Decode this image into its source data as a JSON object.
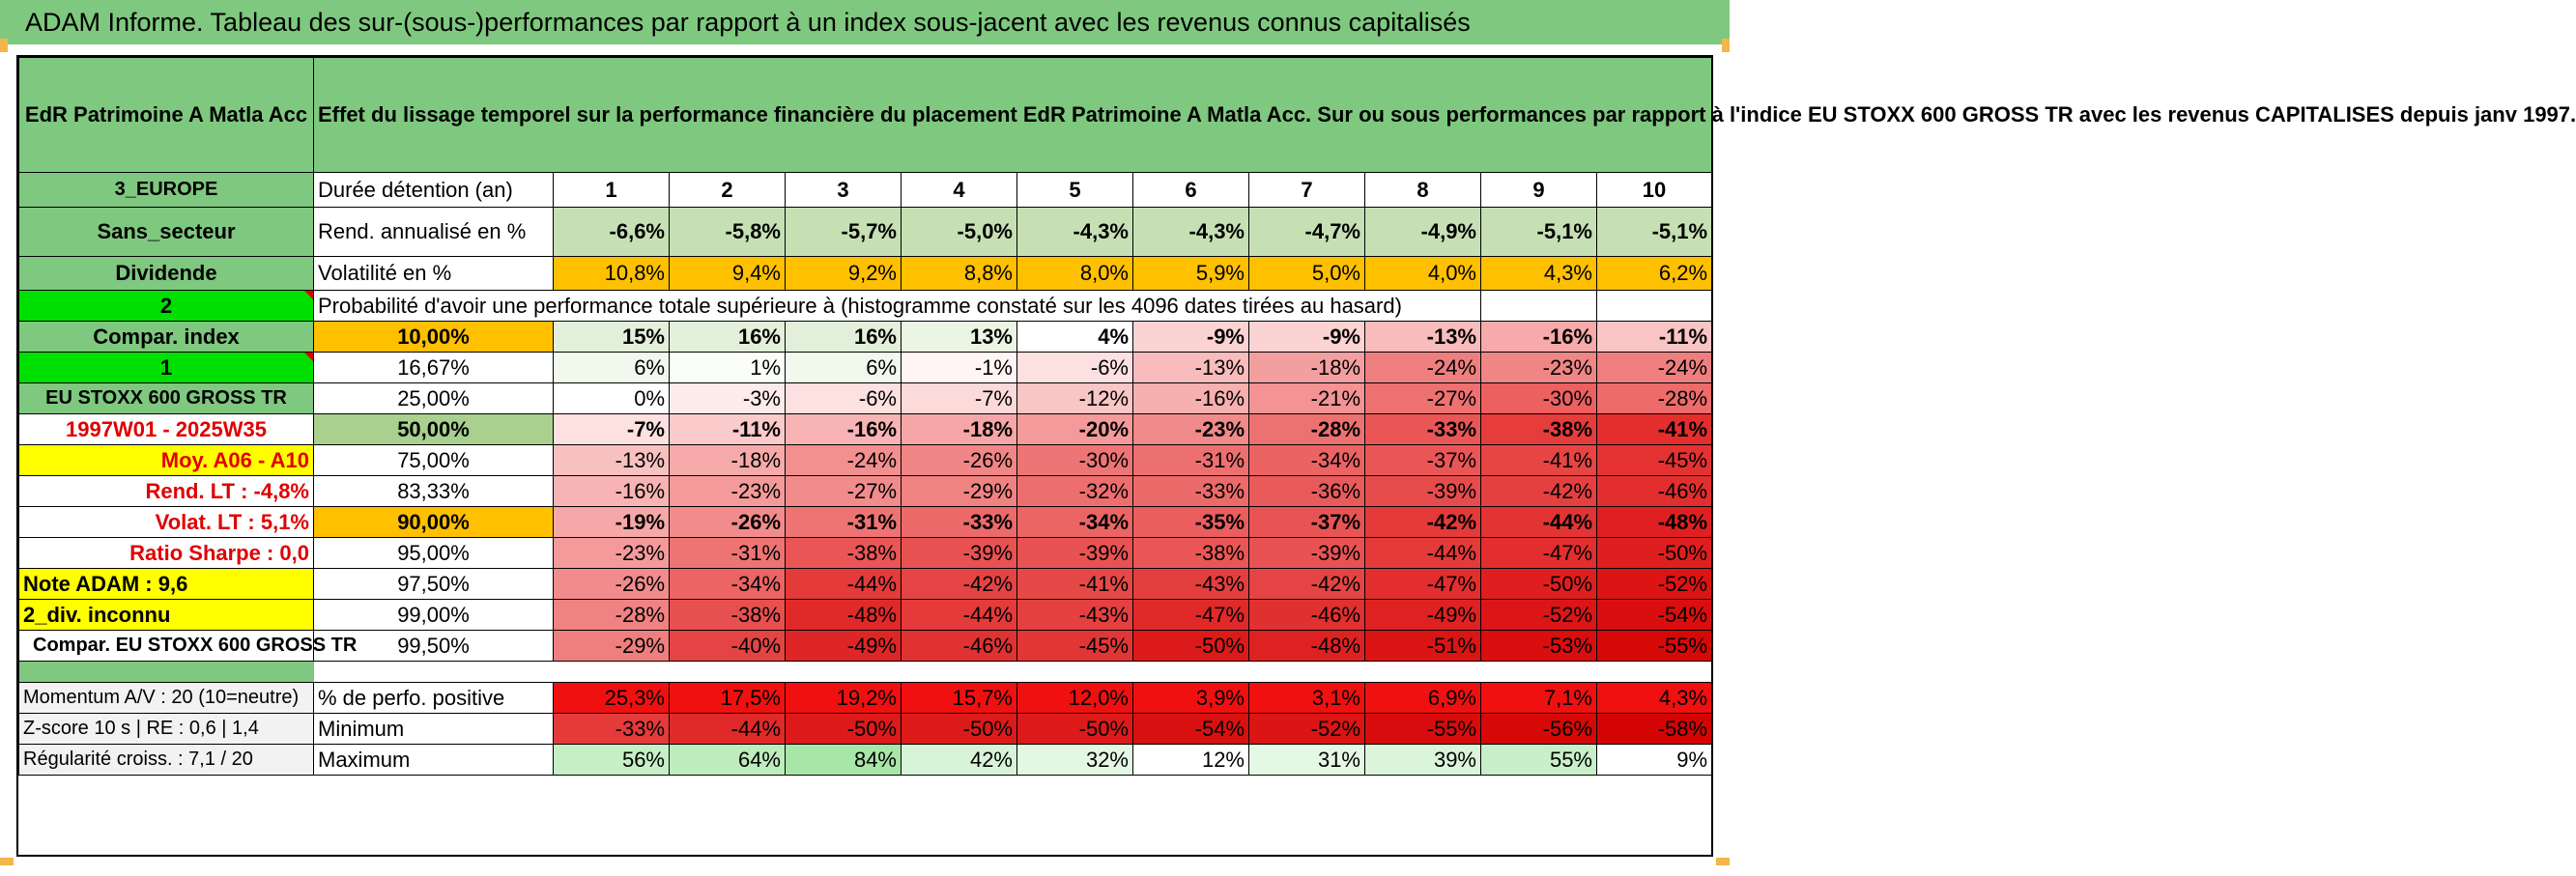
{
  "title": "ADAM Informe. Tableau des sur-(sous-)performances par rapport à un index sous-jacent avec les revenus connus capitalisés",
  "fund_name": "EdR Patrimoine A Matla Acc",
  "description": "Effet du lissage temporel sur la performance financière du placement EdR Patrimoine A Matla Acc. Sur ou sous performances par rapport à l'indice EU STOXX 600 GROSS TR avec les revenus CAPITALISES depuis janv 1997.",
  "left_column": {
    "region": "3_EUROPE",
    "sector": "Sans_secteur",
    "dividend": "Dividende",
    "flag_2": "2",
    "compar_index": "Compar. index",
    "flag_1": "1",
    "index_name": "EU STOXX 600 GROSS TR",
    "period": "1997W01 - 2025W35",
    "moy": "Moy. A06 - A10",
    "rend_lt": "Rend. LT :   -4,8%",
    "volat_lt": "Volat. LT :   5,1%",
    "sharpe": "Ratio Sharpe :    0,0",
    "note_adam": "Note ADAM : 9,6",
    "div_inconnu": "2_div. inconnu",
    "compar_full": "Compar. EU STOXX 600 GROSS TR",
    "momentum": "Momentum A/V : 20 (10=neutre)",
    "zscore": "Z-score 10 s | RE : 0,6 | 1,4",
    "regularite": "Régularité croiss. : 7,1 / 20"
  },
  "row_labels": {
    "duree": "Durée détention (an)",
    "rend": "Rend. annualisé en %",
    "volat": "Volatilité en %",
    "proba": "Probabilité d'avoir une performance totale supérieure à (histogramme constaté sur les 4096 dates tirées au hasard)",
    "perf_pos": "% de perfo. positive",
    "minimum": "Minimum",
    "maximum": "Maximum"
  },
  "colors": {
    "header_green": "#7fc87f",
    "lime": "#00e000",
    "yellow": "#ffff00",
    "orange": "#ffc000",
    "red_text": "#e00000"
  },
  "years": [
    "1",
    "2",
    "3",
    "4",
    "5",
    "6",
    "7",
    "8",
    "9",
    "10"
  ],
  "rend": [
    "-6,6%",
    "-5,8%",
    "-5,7%",
    "-5,0%",
    "-4,3%",
    "-4,3%",
    "-4,7%",
    "-4,9%",
    "-5,1%",
    "-5,1%"
  ],
  "volat": [
    "10,8%",
    "9,4%",
    "9,2%",
    "8,8%",
    "8,0%",
    "5,9%",
    "5,0%",
    "4,0%",
    "4,3%",
    "6,2%"
  ],
  "percentile_rows": [
    {
      "pct": "10,00%",
      "values": [
        "15%",
        "16%",
        "16%",
        "13%",
        "4%",
        "-9%",
        "-9%",
        "-13%",
        "-16%",
        "-11%"
      ]
    },
    {
      "pct": "16,67%",
      "values": [
        "6%",
        "1%",
        "6%",
        "-1%",
        "-6%",
        "-13%",
        "-18%",
        "-24%",
        "-23%",
        "-24%"
      ]
    },
    {
      "pct": "25,00%",
      "values": [
        "0%",
        "-3%",
        "-6%",
        "-7%",
        "-12%",
        "-16%",
        "-21%",
        "-27%",
        "-30%",
        "-28%"
      ]
    },
    {
      "pct": "50,00%",
      "values": [
        "-7%",
        "-11%",
        "-16%",
        "-18%",
        "-20%",
        "-23%",
        "-28%",
        "-33%",
        "-38%",
        "-41%"
      ]
    },
    {
      "pct": "75,00%",
      "values": [
        "-13%",
        "-18%",
        "-24%",
        "-26%",
        "-30%",
        "-31%",
        "-34%",
        "-37%",
        "-41%",
        "-45%"
      ]
    },
    {
      "pct": "83,33%",
      "values": [
        "-16%",
        "-23%",
        "-27%",
        "-29%",
        "-32%",
        "-33%",
        "-36%",
        "-39%",
        "-42%",
        "-46%"
      ]
    },
    {
      "pct": "90,00%",
      "values": [
        "-19%",
        "-26%",
        "-31%",
        "-33%",
        "-34%",
        "-35%",
        "-37%",
        "-42%",
        "-44%",
        "-48%"
      ]
    },
    {
      "pct": "95,00%",
      "values": [
        "-23%",
        "-31%",
        "-38%",
        "-39%",
        "-39%",
        "-38%",
        "-39%",
        "-44%",
        "-47%",
        "-50%"
      ]
    },
    {
      "pct": "97,50%",
      "values": [
        "-26%",
        "-34%",
        "-44%",
        "-42%",
        "-41%",
        "-43%",
        "-42%",
        "-47%",
        "-50%",
        "-52%"
      ]
    },
    {
      "pct": "99,00%",
      "values": [
        "-28%",
        "-38%",
        "-48%",
        "-44%",
        "-43%",
        "-47%",
        "-46%",
        "-49%",
        "-52%",
        "-54%"
      ]
    },
    {
      "pct": "99,50%",
      "values": [
        "-29%",
        "-40%",
        "-49%",
        "-46%",
        "-45%",
        "-50%",
        "-48%",
        "-51%",
        "-53%",
        "-55%"
      ]
    }
  ],
  "perf_pos": [
    "25,3%",
    "17,5%",
    "19,2%",
    "15,7%",
    "12,0%",
    "3,9%",
    "3,1%",
    "6,9%",
    "7,1%",
    "4,3%"
  ],
  "minimum": [
    "-33%",
    "-44%",
    "-50%",
    "-50%",
    "-50%",
    "-54%",
    "-52%",
    "-55%",
    "-56%",
    "-58%"
  ],
  "maximum": [
    "56%",
    "64%",
    "84%",
    "42%",
    "32%",
    "12%",
    "31%",
    "39%",
    "55%",
    "9%"
  ]
}
